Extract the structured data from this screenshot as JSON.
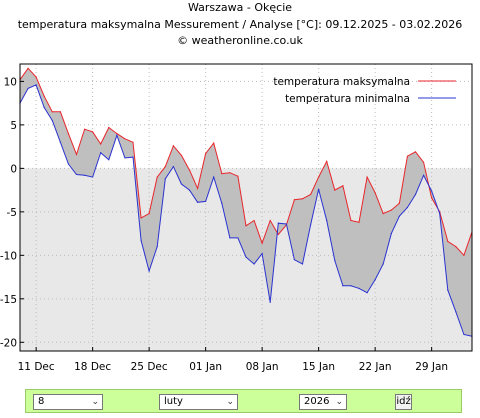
{
  "header": {
    "location": "Warszawa - Okęcie",
    "subtitle": "temperatura maksymalna Messurement / Analyse [°C]: 09.12.2025 - 03.02.2026",
    "source": "© weatheronline.co.uk"
  },
  "colors": {
    "max": "#e8262b",
    "min": "#2a33d1",
    "fill_between": "#bfbfbf",
    "below_zero_bg": "#e8e8e8",
    "grid": "#bbbbbb"
  },
  "chart_data": {
    "type": "line",
    "title": "temperatura maksymalna Messurement / Analyse [°C]: 09.12.2025 - 03.02.2026",
    "x_start": "2025-12-09",
    "xtick_labels": [
      "11 Dec",
      "18 Dec",
      "25 Dec",
      "01 Jan",
      "08 Jan",
      "15 Jan",
      "22 Jan",
      "29 Jan"
    ],
    "ytick_labels": [
      "10",
      "5",
      "0",
      "-5",
      "-10",
      "-15",
      "-20"
    ],
    "ylim": [
      -21,
      12
    ],
    "grid": true,
    "legend_position": "top-right",
    "series": [
      {
        "name": "temperatura maksymalna",
        "color": "#e8262b",
        "values": [
          10.2,
          11.5,
          10.5,
          8.3,
          6.5,
          6.5,
          4.0,
          1.6,
          4.5,
          4.2,
          2.8,
          4.7,
          4.0,
          3.4,
          3.0,
          -5.7,
          -5.2,
          -1.0,
          0.2,
          2.6,
          1.5,
          -0.2,
          -2.3,
          1.7,
          2.9,
          -0.6,
          -0.5,
          -0.9,
          -6.6,
          -6.0,
          -8.6,
          -6.0,
          -7.6,
          -6.5,
          -3.6,
          -3.5,
          -3.0,
          -1.0,
          0.8,
          -2.5,
          -2.0,
          -6.0,
          -6.2,
          -1.0,
          -2.8,
          -5.2,
          -4.8,
          -4.0,
          1.4,
          1.9,
          0.7,
          -3.4,
          -5.0,
          -8.4,
          -9.0,
          -10.0,
          -7.3
        ]
      },
      {
        "name": "temperatura minimalna",
        "color": "#2a33d1",
        "values": [
          7.5,
          9.2,
          9.6,
          7.0,
          5.5,
          3.0,
          0.5,
          -0.7,
          -0.8,
          -1.0,
          1.8,
          1.0,
          3.8,
          1.2,
          1.3,
          -8.3,
          -11.8,
          -9.0,
          -1.2,
          0.2,
          -1.8,
          -2.5,
          -3.9,
          -3.8,
          -1.0,
          -4.0,
          -8.0,
          -8.0,
          -10.2,
          -11.0,
          -9.8,
          -15.4,
          -6.3,
          -6.4,
          -10.5,
          -11.0,
          -6.5,
          -2.4,
          -6.0,
          -10.6,
          -13.5,
          -13.5,
          -13.8,
          -14.3,
          -12.8,
          -11.0,
          -7.5,
          -5.5,
          -4.5,
          -3.0,
          -0.8,
          -2.6,
          -5.2,
          -14.0,
          -16.5,
          -19.1,
          -19.3
        ]
      }
    ]
  },
  "controls": {
    "day": "8",
    "month": "luty",
    "year": "2026",
    "submit": "idź"
  }
}
